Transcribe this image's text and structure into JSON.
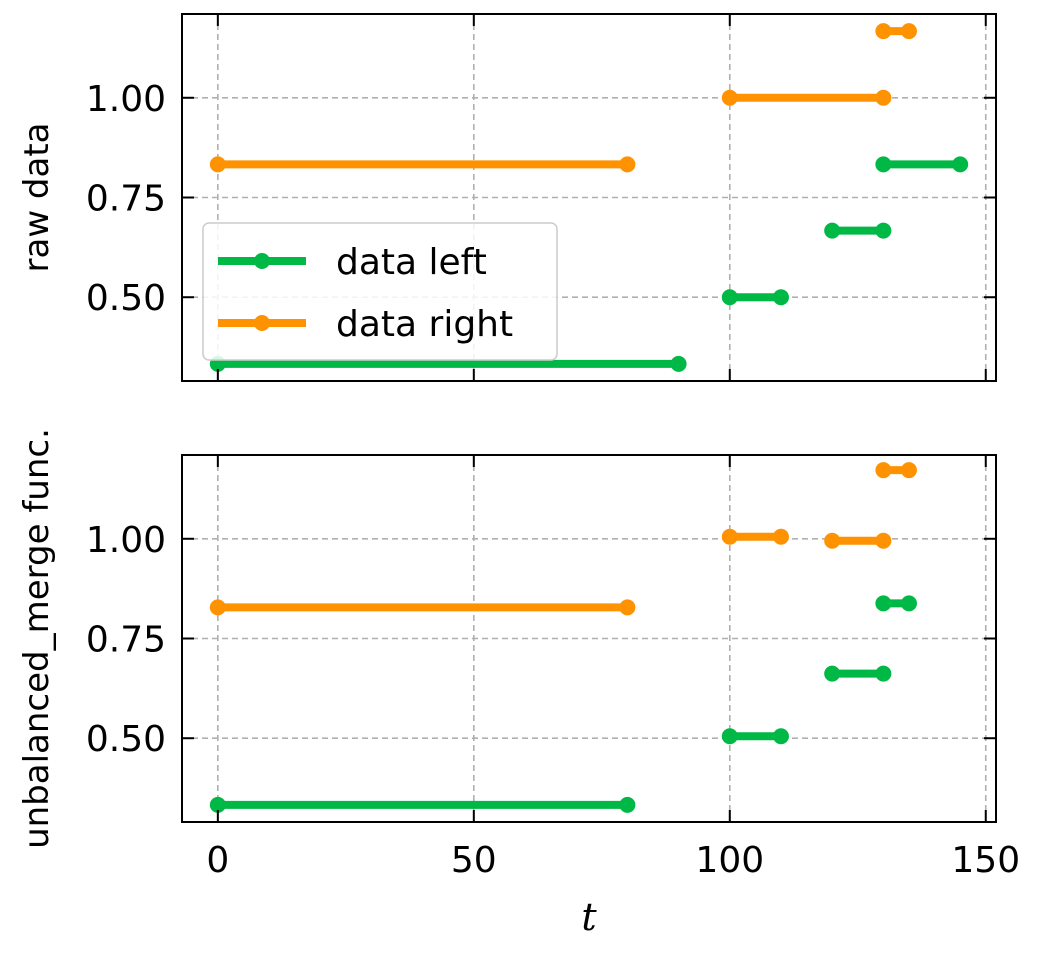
{
  "chart_data": {
    "type": "line",
    "xlabel": "t",
    "colors": {
      "data left": "#00b845",
      "data right": "#ff9200"
    },
    "x_ticks": [
      0,
      50,
      100,
      150
    ],
    "x_tick_labels": [
      "0",
      "50",
      "100",
      "150"
    ],
    "xlim": [
      -7,
      152
    ],
    "legend": {
      "placement": "center-left",
      "entries": [
        "data left",
        "data right"
      ]
    },
    "grid": true,
    "panels": [
      {
        "ylabel": "raw data",
        "ylim": [
          0.29,
          1.21
        ],
        "y_ticks": [
          0.5,
          0.75,
          1.0
        ],
        "y_tick_labels": [
          "0.50",
          "0.75",
          "1.00"
        ],
        "show_x_tick_labels": false,
        "show_legend": true,
        "series": [
          {
            "name": "data left",
            "segments": [
              {
                "x": [
                  0,
                  90
                ],
                "y": [
                  0.333,
                  0.333
                ]
              },
              {
                "x": [
                  100,
                  110
                ],
                "y": [
                  0.5,
                  0.5
                ]
              },
              {
                "x": [
                  120,
                  130
                ],
                "y": [
                  0.667,
                  0.667
                ]
              },
              {
                "x": [
                  130,
                  145
                ],
                "y": [
                  0.833,
                  0.833
                ]
              }
            ]
          },
          {
            "name": "data right",
            "segments": [
              {
                "x": [
                  0,
                  80
                ],
                "y": [
                  0.833,
                  0.833
                ]
              },
              {
                "x": [
                  100,
                  130
                ],
                "y": [
                  1.0,
                  1.0
                ]
              },
              {
                "x": [
                  130,
                  135
                ],
                "y": [
                  1.167,
                  1.167
                ]
              }
            ]
          }
        ]
      },
      {
        "ylabel": "unbalanced_merge func.",
        "ylim": [
          0.29,
          1.21
        ],
        "y_ticks": [
          0.5,
          0.75,
          1.0
        ],
        "y_tick_labels": [
          "0.50",
          "0.75",
          "1.00"
        ],
        "show_x_tick_labels": true,
        "show_legend": false,
        "series": [
          {
            "name": "data left",
            "segments": [
              {
                "x": [
                  0,
                  80
                ],
                "y": [
                  0.333,
                  0.333
                ]
              },
              {
                "x": [
                  100,
                  110
                ],
                "y": [
                  0.505,
                  0.505
                ]
              },
              {
                "x": [
                  120,
                  130
                ],
                "y": [
                  0.662,
                  0.662
                ]
              },
              {
                "x": [
                  130,
                  135
                ],
                "y": [
                  0.838,
                  0.838
                ]
              }
            ]
          },
          {
            "name": "data right",
            "segments": [
              {
                "x": [
                  0,
                  80
                ],
                "y": [
                  0.828,
                  0.828
                ]
              },
              {
                "x": [
                  100,
                  110
                ],
                "y": [
                  1.005,
                  1.005
                ]
              },
              {
                "x": [
                  120,
                  130
                ],
                "y": [
                  0.995,
                  0.995
                ]
              },
              {
                "x": [
                  130,
                  135
                ],
                "y": [
                  1.172,
                  1.172
                ]
              }
            ]
          }
        ]
      }
    ]
  }
}
